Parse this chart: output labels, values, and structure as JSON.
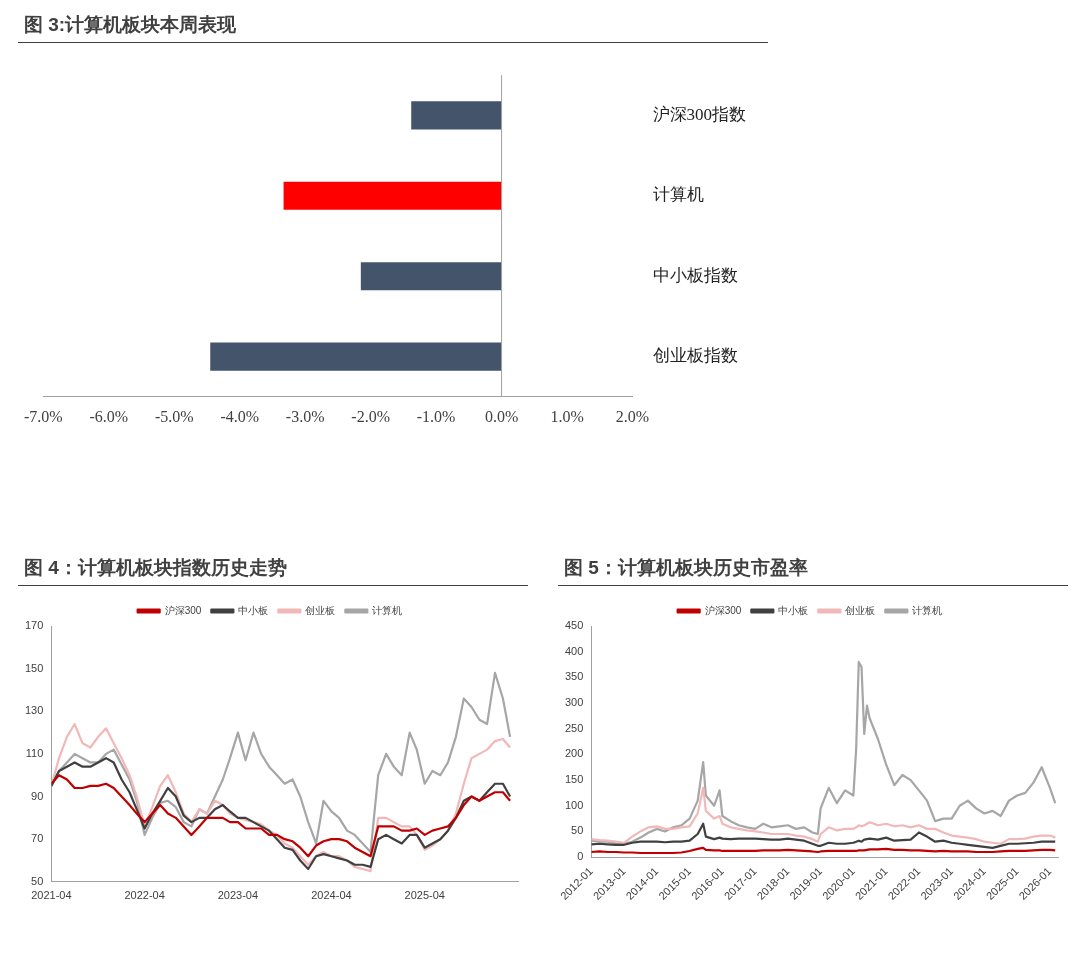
{
  "chart_data": [
    {
      "type": "bar",
      "title": "图 3:计算机板块本周表现",
      "orientation": "horizontal",
      "categories": [
        "沪深300指数",
        "计算机",
        "中小板指数",
        "创业板指数"
      ],
      "values": [
        -1.38,
        -3.33,
        -2.15,
        -4.45
      ],
      "colors": [
        "#44546a",
        "#ff0000",
        "#44546a",
        "#44546a"
      ],
      "xlim": [
        -7,
        2
      ],
      "xticks": [
        {
          "value": -7,
          "label": "-7.0%"
        },
        {
          "value": -6,
          "label": "-6.0%"
        },
        {
          "value": -5,
          "label": "-5.0%"
        },
        {
          "value": -4,
          "label": "-4.0%"
        },
        {
          "value": -3,
          "label": "-3.0%"
        },
        {
          "value": -2,
          "label": "-2.0%"
        },
        {
          "value": -1,
          "label": "-1.0%"
        },
        {
          "value": 0,
          "label": "0.0%"
        },
        {
          "value": 1,
          "label": "1.0%"
        },
        {
          "value": 2,
          "label": "2.0%"
        }
      ]
    },
    {
      "type": "line",
      "title": "图 4：计算机板块指数历史走势",
      "legend": "top",
      "x": [
        "2021-04",
        "2021-05",
        "2021-06",
        "2021-07",
        "2021-08",
        "2021-09",
        "2021-10",
        "2021-11",
        "2021-12",
        "2022-01",
        "2022-02",
        "2022-03",
        "2022-04",
        "2022-05",
        "2022-06",
        "2022-07",
        "2022-08",
        "2022-09",
        "2022-10",
        "2022-11",
        "2022-12",
        "2023-01",
        "2023-02",
        "2023-03",
        "2023-04",
        "2023-05",
        "2023-06",
        "2023-07",
        "2023-08",
        "2023-09",
        "2023-10",
        "2023-11",
        "2023-12",
        "2024-01",
        "2024-02",
        "2024-03",
        "2024-04",
        "2024-05",
        "2024-06",
        "2024-07",
        "2024-08",
        "2024-09",
        "2024-10",
        "2024-11",
        "2024-12",
        "2025-01",
        "2025-02",
        "2025-03",
        "2025-04",
        "2025-05",
        "2025-06",
        "2025-07",
        "2025-08",
        "2025-09",
        "2025-10",
        "2025-11",
        "2025-12",
        "2026-01",
        "2026-02",
        "2026-03"
      ],
      "series": [
        {
          "name": "沪深300",
          "color": "#c00000",
          "values": [
            96,
            100,
            98,
            94,
            94,
            95,
            95,
            96,
            94,
            90,
            86,
            82,
            78,
            82,
            86,
            82,
            80,
            76,
            72,
            76,
            80,
            80,
            80,
            78,
            78,
            75,
            75,
            75,
            72,
            72,
            70,
            69,
            66,
            62,
            67,
            69,
            70,
            70,
            69,
            66,
            64,
            62,
            76,
            76,
            76,
            74,
            74,
            75,
            72,
            74,
            75,
            76,
            80,
            86,
            90,
            88,
            90,
            92,
            92,
            88
          ]
        },
        {
          "name": "中小板",
          "color": "#404040",
          "values": [
            95,
            102,
            104,
            106,
            104,
            104,
            106,
            108,
            106,
            98,
            92,
            84,
            75,
            82,
            88,
            94,
            90,
            81,
            78,
            80,
            80,
            84,
            86,
            83,
            80,
            80,
            78,
            76,
            74,
            70,
            66,
            65,
            60,
            56,
            62,
            63,
            62,
            61,
            60,
            58,
            58,
            57,
            70,
            72,
            70,
            68,
            72,
            72,
            66,
            68,
            70,
            74,
            80,
            88,
            90,
            88,
            92,
            96,
            96,
            90
          ]
        },
        {
          "name": "创业板",
          "color": "#f2b8b8",
          "values": [
            95,
            108,
            118,
            124,
            115,
            113,
            118,
            122,
            115,
            108,
            100,
            90,
            76,
            85,
            95,
            100,
            92,
            82,
            78,
            84,
            82,
            88,
            86,
            82,
            80,
            79,
            78,
            77,
            74,
            72,
            68,
            66,
            62,
            58,
            62,
            64,
            62,
            62,
            60,
            57,
            56,
            55,
            80,
            80,
            78,
            76,
            76,
            72,
            65,
            67,
            70,
            74,
            82,
            96,
            108,
            110,
            112,
            116,
            117,
            113
          ]
        },
        {
          "name": "计算机",
          "color": "#a6a6a6",
          "values": [
            95,
            102,
            106,
            110,
            108,
            106,
            106,
            110,
            112,
            105,
            98,
            88,
            72,
            80,
            87,
            88,
            85,
            78,
            76,
            84,
            82,
            90,
            98,
            108,
            120,
            107,
            120,
            110,
            104,
            100,
            96,
            98,
            90,
            78,
            68,
            88,
            83,
            80,
            74,
            72,
            68,
            64,
            100,
            110,
            104,
            100,
            120,
            112,
            96,
            102,
            100,
            106,
            118,
            136,
            132,
            126,
            124,
            148,
            136,
            118
          ]
        }
      ],
      "xlim": [
        "2021-04",
        "2026-04"
      ],
      "xticks": [
        "2021-04",
        "2022-04",
        "2023-04",
        "2024-04",
        "2025-04"
      ],
      "ylim": [
        50,
        170
      ],
      "yticks": [
        50,
        70,
        90,
        110,
        130,
        150,
        170
      ]
    },
    {
      "type": "line",
      "title": "图 5：计算机板块历史市盈率",
      "legend": "top",
      "x": [
        "2012-01",
        "2012-04",
        "2012-07",
        "2012-10",
        "2013-01",
        "2013-04",
        "2013-07",
        "2013-10",
        "2014-01",
        "2014-04",
        "2014-07",
        "2014-10",
        "2015-01",
        "2015-04",
        "2015-06",
        "2015-07",
        "2015-10",
        "2015-12",
        "2016-01",
        "2016-04",
        "2016-07",
        "2016-10",
        "2017-01",
        "2017-04",
        "2017-07",
        "2017-10",
        "2018-01",
        "2018-04",
        "2018-07",
        "2018-10",
        "2018-12",
        "2019-01",
        "2019-04",
        "2019-07",
        "2019-10",
        "2020-01",
        "2020-02",
        "2020-03",
        "2020-04",
        "2020-05",
        "2020-06",
        "2020-07",
        "2020-10",
        "2021-01",
        "2021-04",
        "2021-07",
        "2021-10",
        "2022-01",
        "2022-04",
        "2022-07",
        "2022-10",
        "2023-01",
        "2023-04",
        "2023-07",
        "2023-10",
        "2024-01",
        "2024-04",
        "2024-07",
        "2024-10",
        "2025-01",
        "2025-04",
        "2025-07",
        "2025-10",
        "2026-01",
        "2026-03"
      ],
      "series": [
        {
          "name": "沪深300",
          "color": "#c00000",
          "values": [
            10,
            11,
            10,
            10,
            9,
            9,
            8,
            8,
            8,
            8,
            8,
            9,
            12,
            16,
            18,
            14,
            13,
            13,
            12,
            12,
            12,
            12,
            12,
            13,
            13,
            13,
            14,
            13,
            12,
            11,
            10,
            11,
            12,
            12,
            12,
            12,
            12,
            13,
            13,
            13,
            14,
            15,
            15,
            16,
            14,
            14,
            13,
            13,
            12,
            11,
            12,
            11,
            11,
            11,
            10,
            10,
            10,
            11,
            12,
            12,
            12,
            13,
            14,
            14,
            13
          ]
        },
        {
          "name": "中小板",
          "color": "#404040",
          "values": [
            25,
            26,
            25,
            24,
            24,
            28,
            30,
            30,
            30,
            29,
            30,
            30,
            32,
            45,
            65,
            40,
            35,
            38,
            36,
            35,
            36,
            36,
            36,
            35,
            34,
            34,
            36,
            34,
            32,
            26,
            22,
            22,
            28,
            26,
            26,
            28,
            30,
            32,
            30,
            34,
            35,
            36,
            34,
            38,
            32,
            33,
            34,
            48,
            40,
            30,
            32,
            28,
            26,
            24,
            22,
            20,
            18,
            22,
            26,
            26,
            27,
            28,
            30,
            30,
            30
          ]
        },
        {
          "name": "创业板",
          "color": "#f2b8b8",
          "values": [
            35,
            33,
            32,
            30,
            28,
            40,
            50,
            58,
            60,
            55,
            55,
            58,
            60,
            85,
            135,
            90,
            75,
            80,
            65,
            58,
            55,
            52,
            50,
            48,
            45,
            45,
            45,
            42,
            40,
            35,
            30,
            45,
            58,
            52,
            55,
            55,
            58,
            62,
            60,
            62,
            65,
            68,
            62,
            65,
            60,
            62,
            58,
            62,
            55,
            55,
            48,
            42,
            40,
            38,
            35,
            30,
            28,
            26,
            35,
            35,
            36,
            40,
            42,
            42,
            38
          ]
        },
        {
          "name": "计算机",
          "color": "#a6a6a6",
          "values": [
            32,
            30,
            30,
            27,
            26,
            30,
            38,
            48,
            55,
            50,
            58,
            62,
            75,
            110,
            185,
            120,
            100,
            130,
            80,
            70,
            62,
            58,
            55,
            65,
            58,
            60,
            62,
            55,
            58,
            48,
            45,
            95,
            135,
            105,
            130,
            120,
            210,
            380,
            370,
            240,
            295,
            270,
            230,
            180,
            140,
            160,
            150,
            130,
            110,
            70,
            75,
            75,
            100,
            110,
            95,
            85,
            90,
            80,
            110,
            120,
            125,
            145,
            175,
            135,
            105
          ]
        }
      ],
      "xlim": [
        "2012-01",
        "2026-04"
      ],
      "xticks": [
        "2012-01",
        "2013-01",
        "2014-01",
        "2015-01",
        "2016-01",
        "2017-01",
        "2018-01",
        "2019-01",
        "2020-01",
        "2021-01",
        "2022-01",
        "2023-01",
        "2024-01",
        "2025-01",
        "2026-01"
      ],
      "ylim": [
        0,
        450
      ],
      "yticks": [
        0,
        50,
        100,
        150,
        200,
        250,
        300,
        350,
        400,
        450
      ]
    }
  ]
}
